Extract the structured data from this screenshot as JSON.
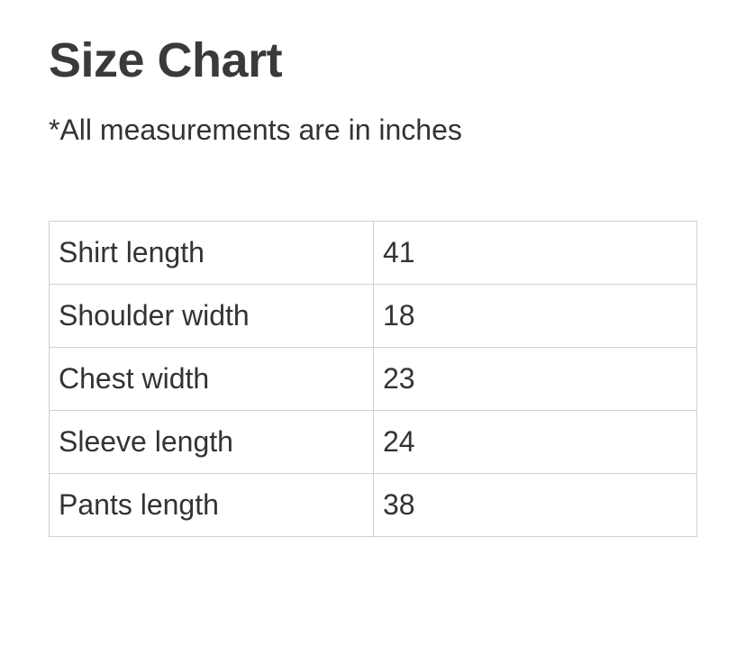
{
  "header": {
    "title": "Size Chart",
    "note": "*All measurements are in inches"
  },
  "table": {
    "rows": [
      [
        "Shirt length",
        "41"
      ],
      [
        "Shoulder width",
        "18"
      ],
      [
        "Chest width",
        "23"
      ],
      [
        "Sleeve length",
        "24"
      ],
      [
        "Pants length",
        "38"
      ]
    ]
  }
}
